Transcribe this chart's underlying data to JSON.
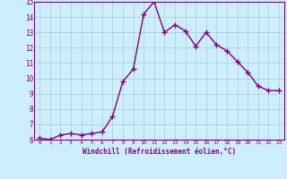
{
  "x": [
    0,
    1,
    2,
    3,
    4,
    5,
    6,
    7,
    8,
    9,
    10,
    11,
    12,
    13,
    14,
    15,
    16,
    17,
    18,
    19,
    20,
    21,
    22,
    23
  ],
  "y": [
    6.1,
    6.0,
    6.3,
    6.4,
    6.3,
    6.4,
    6.5,
    7.5,
    9.8,
    10.6,
    14.2,
    15.0,
    13.0,
    13.5,
    13.1,
    12.1,
    13.0,
    12.2,
    11.8,
    11.1,
    10.4,
    9.5,
    9.2,
    9.2
  ],
  "line_color": "#800080",
  "marker": "+",
  "marker_size": 4,
  "bg_color": "#cceeff",
  "grid_color": "#aacccc",
  "xlabel": "Windchill (Refroidissement éolien,°C)",
  "xlabel_color": "#800080",
  "tick_color": "#800080",
  "ylim": [
    6,
    15
  ],
  "xlim": [
    -0.5,
    23.5
  ],
  "yticks": [
    6,
    7,
    8,
    9,
    10,
    11,
    12,
    13,
    14,
    15
  ],
  "xticks": [
    0,
    1,
    2,
    3,
    4,
    5,
    6,
    7,
    8,
    9,
    10,
    11,
    12,
    13,
    14,
    15,
    16,
    17,
    18,
    19,
    20,
    21,
    22,
    23
  ],
  "spine_color": "#800080",
  "linewidth": 1.0
}
